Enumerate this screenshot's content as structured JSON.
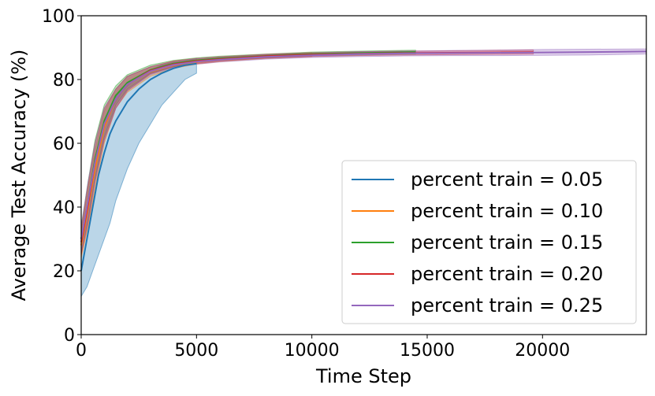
{
  "chart_data": {
    "type": "line",
    "xlabel": "Time Step",
    "ylabel": "Average Test Accuracy (%)",
    "xlim": [
      0,
      24500
    ],
    "ylim": [
      0,
      100
    ],
    "xticks": [
      0,
      5000,
      10000,
      15000,
      20000
    ],
    "yticks": [
      0,
      20,
      40,
      60,
      80,
      100
    ],
    "grid": false,
    "legend_position": "lower-right",
    "series": [
      {
        "name": "percent train = 0.05",
        "color": "#1f77b4",
        "x": [
          0,
          250,
          500,
          750,
          1000,
          1250,
          1500,
          1750,
          2000,
          2500,
          3000,
          3500,
          4000,
          4500,
          5000
        ],
        "y": [
          20,
          30,
          40,
          50,
          57,
          63,
          67,
          70,
          73,
          77,
          80,
          82,
          83.5,
          84.5,
          85
        ],
        "lower": [
          12,
          15,
          20,
          25,
          30,
          35,
          42,
          47,
          52,
          60,
          66,
          72,
          76,
          80,
          82
        ],
        "upper": [
          25,
          38,
          50,
          60,
          66,
          70,
          73,
          76,
          78,
          81,
          83,
          84.5,
          85.5,
          86,
          86.5
        ]
      },
      {
        "name": "percent train = 0.10",
        "color": "#ff7f0e",
        "x": [
          0,
          300,
          600,
          1000,
          1500,
          2000,
          3000,
          4000,
          5000,
          6000,
          8000,
          10000
        ],
        "y": [
          28,
          40,
          52,
          65,
          74,
          78.5,
          82.5,
          84.5,
          85.5,
          86.3,
          87.2,
          87.8
        ],
        "lower": [
          24,
          34,
          46,
          60,
          71,
          76,
          81,
          83.5,
          84.8,
          85.6,
          86.6,
          87.2
        ],
        "upper": [
          32,
          46,
          58,
          70,
          77,
          81,
          84,
          85.5,
          86.3,
          87,
          87.8,
          88.4
        ]
      },
      {
        "name": "percent train = 0.15",
        "color": "#2ca02c",
        "x": [
          0,
          300,
          600,
          1000,
          1500,
          2000,
          3000,
          4000,
          5000,
          6000,
          8000,
          10000,
          12000,
          14500
        ],
        "y": [
          30,
          42,
          55,
          67,
          75,
          79,
          83,
          85,
          86,
          86.6,
          87.4,
          88,
          88.3,
          88.6
        ],
        "lower": [
          26,
          36,
          49,
          62,
          72,
          77,
          82,
          84,
          85.3,
          86,
          86.8,
          87.4,
          87.7,
          88
        ],
        "upper": [
          34,
          48,
          61,
          72,
          78,
          81.5,
          84.5,
          86,
          86.8,
          87.3,
          88,
          88.6,
          88.9,
          89.2
        ]
      },
      {
        "name": "percent train = 0.20",
        "color": "#d62728",
        "x": [
          0,
          300,
          600,
          1000,
          1500,
          2000,
          3000,
          4000,
          5000,
          6000,
          8000,
          10000,
          12000,
          14000,
          16000,
          18000,
          19600
        ],
        "y": [
          29,
          41,
          54,
          66,
          74,
          78.5,
          82.8,
          84.8,
          85.8,
          86.4,
          87.3,
          87.8,
          88.1,
          88.3,
          88.4,
          88.5,
          88.6
        ],
        "lower": [
          25,
          35,
          48,
          61,
          71,
          76.5,
          81.8,
          84,
          85,
          85.8,
          86.7,
          87.2,
          87.5,
          87.7,
          87.8,
          87.9,
          88
        ],
        "upper": [
          33,
          47,
          60,
          71,
          77,
          81,
          84,
          85.8,
          86.6,
          87.1,
          87.9,
          88.4,
          88.7,
          88.9,
          89,
          89.2,
          89.3
        ]
      },
      {
        "name": "percent train = 0.25",
        "color": "#9467bd",
        "x": [
          0,
          300,
          600,
          1000,
          1500,
          2000,
          3000,
          4000,
          5000,
          6000,
          8000,
          10000,
          12000,
          14000,
          16000,
          18000,
          20000,
          22000,
          24500
        ],
        "y": [
          30,
          42,
          54,
          66,
          74,
          78.5,
          82.6,
          84.6,
          85.6,
          86.2,
          87.1,
          87.6,
          88,
          88.2,
          88.3,
          88.4,
          88.5,
          88.6,
          88.8
        ],
        "lower": [
          26,
          36,
          48,
          61,
          71,
          76.5,
          81.5,
          83.8,
          84.8,
          85.5,
          86.4,
          86.9,
          87.2,
          87.4,
          87.5,
          87.5,
          87.6,
          87.7,
          88
        ],
        "upper": [
          34,
          48,
          60,
          71,
          77,
          81,
          84,
          85.6,
          86.5,
          87,
          87.8,
          88.3,
          88.7,
          88.9,
          89.1,
          89.2,
          89.4,
          89.5,
          89.6
        ]
      }
    ]
  }
}
